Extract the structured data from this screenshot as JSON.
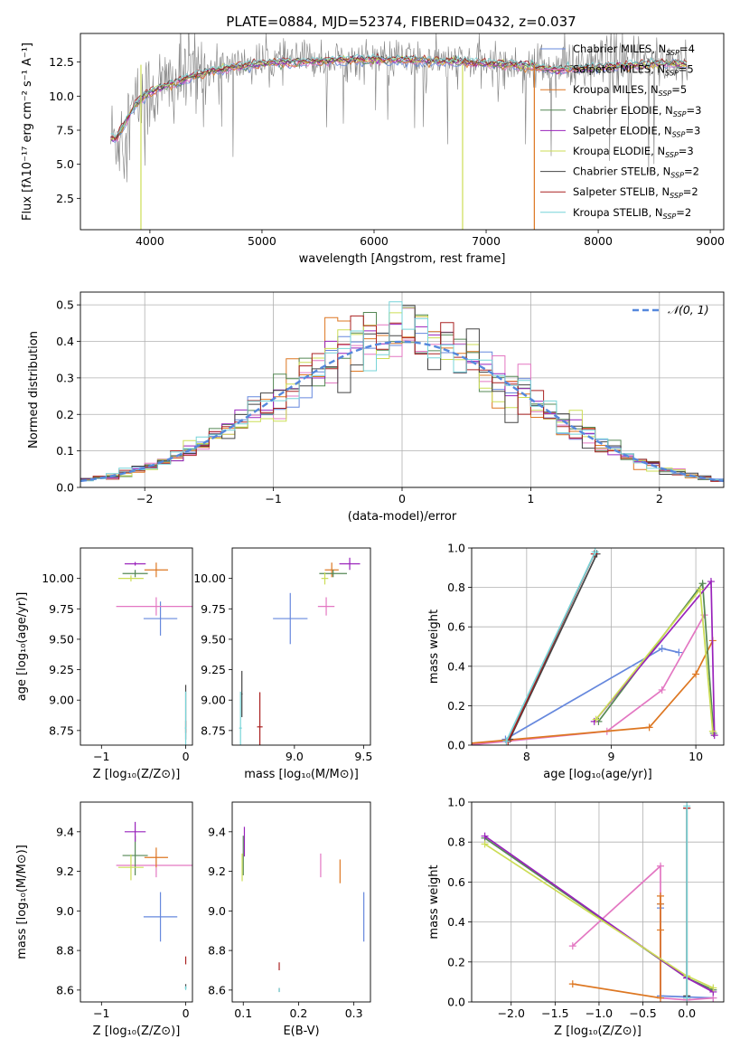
{
  "figure": {
    "title": "PLATE=0884, MJD=52374, FIBERID=0432, z=0.037"
  },
  "chart_data": [
    {
      "id": "spectrum",
      "type": "line",
      "title": "PLATE=0884, MJD=52374, FIBERID=0432, z=0.037",
      "xlabel": "wavelength [Angstrom, rest frame]",
      "ylabel": "Flux [fλ10⁻¹⁷ erg cm⁻² s⁻¹ A⁻¹]",
      "xlim": [
        3380,
        9120
      ],
      "ylim": [
        0.2,
        14.6
      ],
      "xticks": [
        4000,
        5000,
        6000,
        7000,
        8000,
        9000
      ],
      "yticks": [
        2.5,
        5.0,
        7.5,
        10.0,
        12.5
      ],
      "grid": false,
      "legend_position": "top-right",
      "observed": {
        "color": "#808080",
        "x": [
          3650,
          3700,
          3750,
          3800,
          3900,
          4000,
          4100,
          4200,
          4300,
          4400,
          4500,
          4700,
          5000,
          5200,
          5500,
          5800,
          6000,
          6300,
          6500,
          6800,
          7000,
          7200,
          7400,
          7600,
          7800,
          8000,
          8200,
          8400,
          8600,
          8800
        ],
        "y": [
          7.0,
          6.8,
          7.5,
          8.2,
          9.6,
          10.2,
          10.6,
          10.9,
          11.4,
          11.6,
          11.9,
          12.2,
          12.5,
          12.6,
          12.7,
          12.6,
          12.8,
          12.7,
          12.6,
          12.5,
          12.4,
          12.3,
          12.2,
          12.0,
          12.2,
          12.3,
          12.5,
          12.4,
          12.6,
          12.5
        ],
        "noise": 1.3
      },
      "legend": [
        {
          "label": "Chabrier MILES, N",
          "sub": "SSP",
          "suffix": "=4",
          "color": "#6688dd"
        },
        {
          "label": "Salpeter MILES, N",
          "sub": "SSP",
          "suffix": "=5",
          "color": "#e377c2"
        },
        {
          "label": "Kroupa MILES, N",
          "sub": "SSP",
          "suffix": "=5",
          "color": "#dd7722"
        },
        {
          "label": "Chabrier ELODIE, N",
          "sub": "SSP",
          "suffix": "=3",
          "color": "#558855"
        },
        {
          "label": "Salpeter ELODIE, N",
          "sub": "SSP",
          "suffix": "=3",
          "color": "#9922bb"
        },
        {
          "label": "Kroupa ELODIE, N",
          "sub": "SSP",
          "suffix": "=3",
          "color": "#ccdd55"
        },
        {
          "label": "Chabrier STELIB, N",
          "sub": "SSP",
          "suffix": "=2",
          "color": "#444444"
        },
        {
          "label": "Salpeter STELIB, N",
          "sub": "SSP",
          "suffix": "=2",
          "color": "#aa2222"
        },
        {
          "label": "Kroupa STELIB, N",
          "sub": "SSP",
          "suffix": "=2",
          "color": "#77d4d8"
        }
      ],
      "model": {
        "x": [
          3650,
          3700,
          3750,
          3800,
          3900,
          4000,
          4200,
          4400,
          4600,
          4800,
          5000,
          5300,
          5600,
          6000,
          6400,
          6800,
          7000,
          7200,
          7400,
          7600,
          7800,
          8000,
          8200,
          8400,
          8600,
          8800
        ],
        "y": [
          7.0,
          6.9,
          7.6,
          8.4,
          9.7,
          10.3,
          10.9,
          11.5,
          11.9,
          12.2,
          12.4,
          12.5,
          12.6,
          12.7,
          12.6,
          12.5,
          12.4,
          12.3,
          12.2,
          11.9,
          12.0,
          12.1,
          12.2,
          12.3,
          12.4,
          12.3
        ]
      },
      "spikes": [
        {
          "x": 3920,
          "color": "#ccdd55"
        },
        {
          "x": 6790,
          "color": "#ccdd55"
        },
        {
          "x": 7430,
          "color": "#dd7722"
        }
      ]
    },
    {
      "id": "residuals",
      "type": "bar",
      "xlabel": "(data-model)/error",
      "ylabel": "Normed distribution",
      "xlim": [
        -2.5,
        2.5
      ],
      "ylim": [
        0,
        0.535
      ],
      "xticks": [
        -2,
        -1,
        0,
        1,
        2
      ],
      "yticks": [
        0.0,
        0.1,
        0.2,
        0.3,
        0.4,
        0.5
      ],
      "grid": true,
      "gaussian_label": "𝒩(0, 1)",
      "gaussian_color": "#5588dd",
      "bin_width": 0.1
    },
    {
      "id": "age-vs-Z",
      "type": "scatter",
      "xlabel": "Z [log₁₀(Z/Z⊙)]",
      "ylabel": "age  [log₁₀(age/yr)]",
      "xlim": [
        -1.25,
        0.08
      ],
      "ylim": [
        8.63,
        10.25
      ],
      "xticks": [
        -1,
        0
      ],
      "yticks": [
        8.75,
        9.0,
        9.25,
        9.5,
        9.75,
        10.0
      ],
      "points": [
        {
          "x": -0.3,
          "y": 9.67,
          "dx": 0.4,
          "dy": 0.28,
          "color": "#6688dd"
        },
        {
          "x": -0.35,
          "y": 9.77,
          "dx": 0.95,
          "dy": 0.15,
          "color": "#e377c2"
        },
        {
          "x": -0.35,
          "y": 10.07,
          "dx": 0.28,
          "dy": 0.12,
          "color": "#dd7722"
        },
        {
          "x": -0.6,
          "y": 10.04,
          "dx": 0.3,
          "dy": 0.06,
          "color": "#558855"
        },
        {
          "x": -0.6,
          "y": 10.12,
          "dx": 0.25,
          "dy": 0.03,
          "color": "#9922bb"
        },
        {
          "x": -0.65,
          "y": 10.0,
          "dx": 0.3,
          "dy": 0.05,
          "color": "#ccdd55"
        },
        {
          "x": 0.0,
          "y": 8.9,
          "dx": 0.01,
          "dy": 0.45,
          "color": "#444444"
        },
        {
          "x": 0.0,
          "y": 8.78,
          "dx": 0.01,
          "dy": 0.1,
          "color": "#aa2222"
        },
        {
          "x": 0.0,
          "y": 8.77,
          "dx": 0.02,
          "dy": 0.6,
          "color": "#77d4d8"
        }
      ]
    },
    {
      "id": "age-vs-mass",
      "type": "scatter",
      "xlabel": "mass [log₁₀(M/M⊙)]",
      "ylabel": "",
      "xlim": [
        8.55,
        9.55
      ],
      "ylim": [
        8.63,
        10.25
      ],
      "xticks": [
        9.0,
        9.5
      ],
      "yticks": [
        8.75,
        9.0,
        9.25,
        9.5,
        9.75,
        10.0
      ],
      "points": [
        {
          "x": 8.97,
          "y": 9.67,
          "dx": 0.25,
          "dy": 0.42,
          "color": "#6688dd"
        },
        {
          "x": 9.23,
          "y": 9.77,
          "dx": 0.12,
          "dy": 0.15,
          "color": "#e377c2"
        },
        {
          "x": 9.27,
          "y": 10.07,
          "dx": 0.1,
          "dy": 0.12,
          "color": "#dd7722"
        },
        {
          "x": 9.28,
          "y": 10.04,
          "dx": 0.2,
          "dy": 0.06,
          "color": "#558855"
        },
        {
          "x": 9.4,
          "y": 10.12,
          "dx": 0.15,
          "dy": 0.1,
          "color": "#9922bb"
        },
        {
          "x": 9.22,
          "y": 10.0,
          "dx": 0.05,
          "dy": 0.1,
          "color": "#ccdd55"
        },
        {
          "x": 8.62,
          "y": 9.05,
          "dx": 0.01,
          "dy": 0.38,
          "color": "#444444"
        },
        {
          "x": 8.75,
          "y": 8.78,
          "dx": 0.04,
          "dy": 0.57,
          "color": "#aa2222"
        },
        {
          "x": 8.61,
          "y": 8.77,
          "dx": 0.02,
          "dy": 0.6,
          "color": "#77d4d8"
        }
      ]
    },
    {
      "id": "weight-vs-age",
      "type": "line",
      "xlabel": "age  [log₁₀(age/yr)]",
      "ylabel": "mass weight",
      "xlim": [
        7.35,
        10.33
      ],
      "ylim": [
        0,
        1.0
      ],
      "xticks": [
        8,
        9,
        10
      ],
      "yticks": [
        0.0,
        0.2,
        0.4,
        0.6,
        0.8,
        1.0
      ],
      "grid": true,
      "series": [
        {
          "color": "#6688dd",
          "x": [
            7.75,
            9.6,
            9.8
          ],
          "y": [
            0.03,
            0.49,
            0.47
          ]
        },
        {
          "color": "#e377c2",
          "x": [
            7.3,
            8.95,
            9.6,
            10.1
          ],
          "y": [
            0.0,
            0.07,
            0.28,
            0.66
          ]
        },
        {
          "color": "#dd7722",
          "x": [
            7.1,
            9.45,
            10.0,
            10.2
          ],
          "y": [
            0.0,
            0.09,
            0.36,
            0.53
          ]
        },
        {
          "color": "#558855",
          "x": [
            8.85,
            10.08,
            10.21
          ],
          "y": [
            0.12,
            0.82,
            0.06
          ]
        },
        {
          "color": "#9922bb",
          "x": [
            8.8,
            10.18,
            10.22
          ],
          "y": [
            0.12,
            0.83,
            0.05
          ]
        },
        {
          "color": "#ccdd55",
          "x": [
            8.82,
            10.05,
            10.2
          ],
          "y": [
            0.13,
            0.79,
            0.07
          ]
        },
        {
          "color": "#444444",
          "x": [
            7.8,
            8.83
          ],
          "y": [
            0.03,
            0.97
          ]
        },
        {
          "color": "#aa2222",
          "x": [
            7.78,
            8.8
          ],
          "y": [
            0.02,
            0.97
          ]
        },
        {
          "color": "#77d4d8",
          "x": [
            7.76,
            8.81
          ],
          "y": [
            0.02,
            0.98
          ]
        }
      ]
    },
    {
      "id": "mass-vs-Z",
      "type": "scatter",
      "xlabel": "Z [log₁₀(Z/Z⊙)]",
      "ylabel": "mass [log₁₀(M/M⊙)]",
      "xlim": [
        -1.25,
        0.08
      ],
      "ylim": [
        8.54,
        9.55
      ],
      "xticks": [
        -1,
        0
      ],
      "yticks": [
        8.6,
        8.8,
        9.0,
        9.2,
        9.4
      ],
      "points": [
        {
          "x": -0.3,
          "y": 8.97,
          "dx": 0.4,
          "dy": 0.25,
          "color": "#6688dd"
        },
        {
          "x": -0.35,
          "y": 9.23,
          "dx": 0.95,
          "dy": 0.12,
          "color": "#e377c2"
        },
        {
          "x": -0.35,
          "y": 9.27,
          "dx": 0.28,
          "dy": 0.1,
          "color": "#dd7722"
        },
        {
          "x": -0.6,
          "y": 9.28,
          "dx": 0.3,
          "dy": 0.2,
          "color": "#558855"
        },
        {
          "x": -0.6,
          "y": 9.4,
          "dx": 0.25,
          "dy": 0.1,
          "color": "#9922bb"
        },
        {
          "x": -0.65,
          "y": 9.22,
          "dx": 0.3,
          "dy": 0.13,
          "color": "#ccdd55"
        },
        {
          "x": 0.0,
          "y": 8.62,
          "dx": 0.01,
          "dy": 0.02,
          "color": "#444444"
        },
        {
          "x": 0.0,
          "y": 8.75,
          "dx": 0.01,
          "dy": 0.04,
          "color": "#aa2222"
        },
        {
          "x": 0.0,
          "y": 8.61,
          "dx": 0.02,
          "dy": 0.02,
          "color": "#77d4d8"
        }
      ]
    },
    {
      "id": "mass-vs-EBV",
      "type": "scatter",
      "xlabel": "E(B-V)",
      "ylabel": "",
      "xlim": [
        0.08,
        0.33
      ],
      "ylim": [
        8.54,
        9.55
      ],
      "xticks": [
        0.1,
        0.2,
        0.3
      ],
      "yticks": [
        8.6,
        8.8,
        9.0,
        9.2,
        9.4
      ],
      "points": [
        {
          "x": 0.318,
          "y": 8.97,
          "dx": 0.0,
          "dy": 0.25,
          "color": "#6688dd"
        },
        {
          "x": 0.24,
          "y": 9.23,
          "dx": 0.0,
          "dy": 0.12,
          "color": "#e377c2"
        },
        {
          "x": 0.275,
          "y": 9.2,
          "dx": 0.0,
          "dy": 0.12,
          "color": "#dd7722"
        },
        {
          "x": 0.1,
          "y": 9.28,
          "dx": 0.0,
          "dy": 0.2,
          "color": "#558855"
        },
        {
          "x": 0.102,
          "y": 9.35,
          "dx": 0.0,
          "dy": 0.15,
          "color": "#9922bb"
        },
        {
          "x": 0.098,
          "y": 9.22,
          "dx": 0.0,
          "dy": 0.14,
          "color": "#ccdd55"
        },
        {
          "x": 0.165,
          "y": 8.6,
          "dx": 0.0,
          "dy": 0.02,
          "color": "#444444"
        },
        {
          "x": 0.165,
          "y": 8.72,
          "dx": 0.0,
          "dy": 0.04,
          "color": "#aa2222"
        },
        {
          "x": 0.165,
          "y": 8.6,
          "dx": 0.0,
          "dy": 0.02,
          "color": "#77d4d8"
        }
      ]
    },
    {
      "id": "weight-vs-Z",
      "type": "line",
      "xlabel": "Z [log₁₀(Z/Z⊙)]",
      "ylabel": "mass weight",
      "xlim": [
        -2.45,
        0.42
      ],
      "ylim": [
        0,
        1.0
      ],
      "xticks": [
        -2.0,
        -1.5,
        -1.0,
        -0.5,
        0.0
      ],
      "yticks": [
        0.0,
        0.2,
        0.4,
        0.6,
        0.8,
        1.0
      ],
      "grid": true,
      "series": [
        {
          "color": "#6688dd",
          "x": [
            -0.3,
            -0.3,
            -0.3,
            0.3
          ],
          "y": [
            0.49,
            0.47,
            0.03,
            0.02
          ]
        },
        {
          "color": "#e377c2",
          "x": [
            -1.3,
            -0.3,
            -0.3,
            0.0,
            0.3
          ],
          "y": [
            0.28,
            0.68,
            0.02,
            0.01,
            0.02
          ]
        },
        {
          "color": "#dd7722",
          "x": [
            -1.3,
            -0.3,
            -0.3,
            -0.3,
            -0.3
          ],
          "y": [
            0.09,
            0.02,
            0.36,
            0.53,
            0.49
          ]
        },
        {
          "color": "#558855",
          "x": [
            -2.3,
            0.0,
            0.3
          ],
          "y": [
            0.82,
            0.12,
            0.06
          ]
        },
        {
          "color": "#9922bb",
          "x": [
            -2.3,
            0.0,
            0.3
          ],
          "y": [
            0.83,
            0.12,
            0.05
          ]
        },
        {
          "color": "#ccdd55",
          "x": [
            -2.3,
            0.0,
            0.3
          ],
          "y": [
            0.79,
            0.13,
            0.07
          ]
        },
        {
          "color": "#444444",
          "x": [
            0.0,
            0.0
          ],
          "y": [
            0.03,
            0.97
          ]
        },
        {
          "color": "#aa2222",
          "x": [
            0.0,
            0.0
          ],
          "y": [
            0.02,
            0.97
          ]
        },
        {
          "color": "#77d4d8",
          "x": [
            0.0,
            0.0
          ],
          "y": [
            0.02,
            0.98
          ]
        }
      ]
    }
  ]
}
